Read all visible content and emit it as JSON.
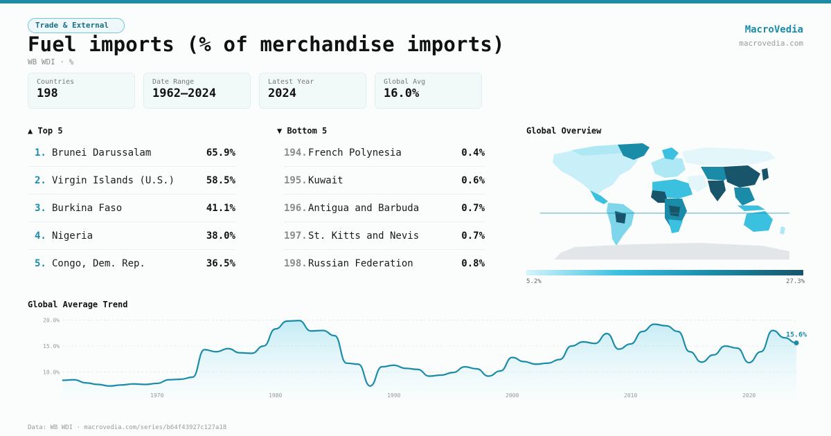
{
  "header": {
    "badge": "Trade & External",
    "title": "Fuel imports (% of merchandise imports)",
    "subtitle": "WB WDI · %",
    "brand": "MacroVedia",
    "brand_url": "macrovedia.com"
  },
  "stats": [
    {
      "label": "Countries",
      "value": "198"
    },
    {
      "label": "Date Range",
      "value": "1962–2024"
    },
    {
      "label": "Latest Year",
      "value": "2024"
    },
    {
      "label": "Global Avg",
      "value": "16.0%"
    }
  ],
  "top5": {
    "heading": "▲ Top 5",
    "items": [
      {
        "rank": "1.",
        "name": "Brunei Darussalam",
        "value": "65.9%"
      },
      {
        "rank": "2.",
        "name": "Virgin Islands (U.S.)",
        "value": "58.5%"
      },
      {
        "rank": "3.",
        "name": "Burkina Faso",
        "value": "41.1%"
      },
      {
        "rank": "4.",
        "name": "Nigeria",
        "value": "38.0%"
      },
      {
        "rank": "5.",
        "name": "Congo, Dem. Rep.",
        "value": "36.5%"
      }
    ]
  },
  "bottom5": {
    "heading": "▼ Bottom 5",
    "items": [
      {
        "rank": "194.",
        "name": "French Polynesia",
        "value": "0.4%"
      },
      {
        "rank": "195.",
        "name": "Kuwait",
        "value": "0.6%"
      },
      {
        "rank": "196.",
        "name": "Antigua and Barbuda",
        "value": "0.7%"
      },
      {
        "rank": "197.",
        "name": "St. Kitts and Nevis",
        "value": "0.7%"
      },
      {
        "rank": "198.",
        "name": "Russian Federation",
        "value": "0.8%"
      }
    ]
  },
  "map": {
    "heading": "Global Overview",
    "legend_min": "5.2%",
    "legend_max": "27.3%",
    "colors": [
      "#d6f4fa",
      "#3cc0e0",
      "#1a8ca8",
      "#18546a"
    ]
  },
  "trend": {
    "heading": "Global Average Trend",
    "last_label": "15.6%",
    "line_color": "#1a8ca8"
  },
  "footer": "Data: WB WDI · macrovedia.com/series/b64f43927c127a18",
  "chart_data": {
    "type": "area",
    "title": "Global Average Trend",
    "x": [
      1962,
      1963,
      1964,
      1965,
      1966,
      1967,
      1968,
      1969,
      1970,
      1971,
      1972,
      1973,
      1974,
      1975,
      1976,
      1977,
      1978,
      1979,
      1980,
      1981,
      1982,
      1983,
      1984,
      1985,
      1986,
      1987,
      1988,
      1989,
      1990,
      1991,
      1992,
      1993,
      1994,
      1995,
      1996,
      1997,
      1998,
      1999,
      2000,
      2001,
      2002,
      2003,
      2004,
      2005,
      2006,
      2007,
      2008,
      2009,
      2010,
      2011,
      2012,
      2013,
      2014,
      2015,
      2016,
      2017,
      2018,
      2019,
      2020,
      2021,
      2022,
      2023,
      2024
    ],
    "y": [
      8.4,
      8.5,
      7.9,
      7.6,
      7.3,
      7.5,
      7.7,
      7.6,
      7.8,
      8.5,
      8.6,
      9.0,
      14.3,
      13.9,
      14.5,
      13.7,
      13.6,
      15.0,
      18.3,
      19.8,
      19.9,
      17.9,
      18.0,
      17.0,
      11.7,
      11.5,
      7.3,
      11.0,
      11.3,
      10.7,
      10.5,
      9.2,
      9.4,
      9.9,
      11.0,
      10.6,
      9.2,
      10.2,
      12.8,
      12.0,
      11.5,
      11.7,
      12.4,
      15.0,
      15.8,
      15.5,
      17.4,
      14.4,
      15.4,
      17.8,
      19.2,
      18.9,
      17.8,
      13.9,
      11.9,
      13.3,
      15.0,
      14.6,
      11.8,
      13.9,
      18.0,
      16.6,
      15.6
    ],
    "yticks": [
      "10.0%",
      "15.0%",
      "20.0%"
    ],
    "ytick_values": [
      10,
      15,
      20
    ],
    "xticks": [
      1970,
      1980,
      1990,
      2000,
      2010,
      2020
    ],
    "xlim": [
      1962,
      2024
    ],
    "ylim": [
      5,
      21
    ],
    "grid": true
  }
}
